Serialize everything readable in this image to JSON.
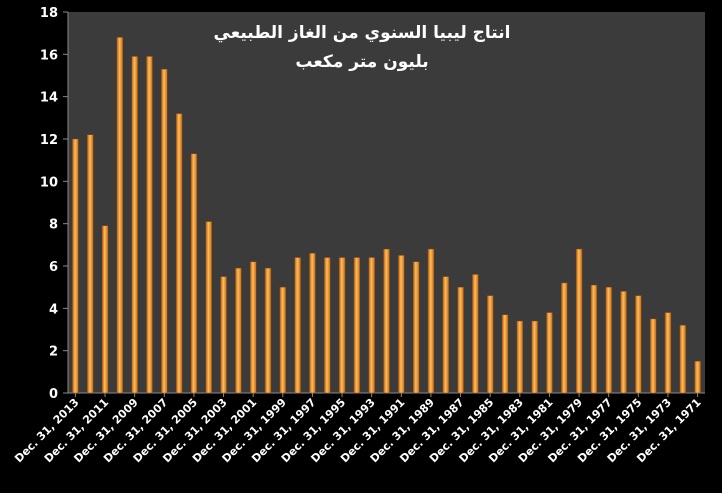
{
  "chart_data": {
    "type": "bar",
    "title": "انتاج ليبيا السنوي من الغاز الطبيعي",
    "subtitle": "بليون متر مكعب",
    "xlabel": "",
    "ylabel": "",
    "ylim": [
      0,
      18
    ],
    "yticks": [
      "0",
      "2",
      "4",
      "6",
      "8",
      "10",
      "12",
      "14",
      "16",
      "18"
    ],
    "grid": false,
    "legend": "none",
    "bar_color": "#f0962a",
    "plot_background": "#3b3b3b",
    "page_background": "#000000",
    "tick_label_color": "#ffffff",
    "categories": [
      "Dec. 31, 2013",
      "Dec. 31, 2012",
      "Dec. 31, 2011",
      "Dec. 31, 2010",
      "Dec. 31, 2009",
      "Dec. 31, 2008",
      "Dec. 31, 2007",
      "Dec. 31, 2006",
      "Dec. 31, 2005",
      "Dec. 31, 2004",
      "Dec. 31, 2003",
      "Dec. 31, 2002",
      "Dec. 31, 2001",
      "Dec. 31, 2000",
      "Dec. 31, 1999",
      "Dec. 31, 1998",
      "Dec. 31, 1997",
      "Dec. 31, 1996",
      "Dec. 31, 1995",
      "Dec. 31, 1994",
      "Dec. 31, 1993",
      "Dec. 31, 1992",
      "Dec. 31, 1991",
      "Dec. 31, 1990",
      "Dec. 31, 1989",
      "Dec. 31, 1988",
      "Dec. 31, 1987",
      "Dec. 31, 1986",
      "Dec. 31, 1985",
      "Dec. 31, 1984",
      "Dec. 31, 1983",
      "Dec. 31, 1982",
      "Dec. 31, 1981",
      "Dec. 31, 1980",
      "Dec. 31, 1979",
      "Dec. 31, 1978",
      "Dec. 31, 1977",
      "Dec. 31, 1976",
      "Dec. 31, 1975",
      "Dec. 31, 1974",
      "Dec. 31, 1973",
      "Dec. 31, 1972",
      "Dec. 31, 1971"
    ],
    "shown_tick_labels": [
      "Dec. 31, 2013",
      "Dec. 31, 2011",
      "Dec. 31, 2009",
      "Dec. 31, 2007",
      "Dec. 31, 2005",
      "Dec. 31, 2003",
      "Dec. 31, 2001",
      "Dec. 31, 1999",
      "Dec. 31, 1997",
      "Dec. 31, 1995",
      "Dec. 31, 1993",
      "Dec. 31, 1991",
      "Dec. 31, 1989",
      "Dec. 31, 1987",
      "Dec. 31, 1985",
      "Dec. 31, 1983",
      "Dec. 31, 1981",
      "Dec. 31, 1979",
      "Dec. 31, 1977",
      "Dec. 31, 1975",
      "Dec. 31, 1973",
      "Dec. 31, 1971"
    ],
    "values": [
      12.0,
      12.2,
      7.9,
      16.8,
      15.9,
      15.9,
      15.3,
      13.2,
      11.3,
      8.1,
      5.5,
      5.9,
      6.2,
      5.9,
      5.0,
      6.4,
      6.6,
      6.4,
      6.4,
      6.4,
      6.4,
      6.8,
      6.5,
      6.2,
      6.8,
      5.5,
      5.0,
      5.6,
      4.6,
      3.7,
      3.4,
      3.4,
      3.8,
      5.2,
      6.8,
      5.1,
      5.0,
      4.8,
      4.6,
      3.5,
      3.8,
      3.2,
      1.5
    ]
  }
}
